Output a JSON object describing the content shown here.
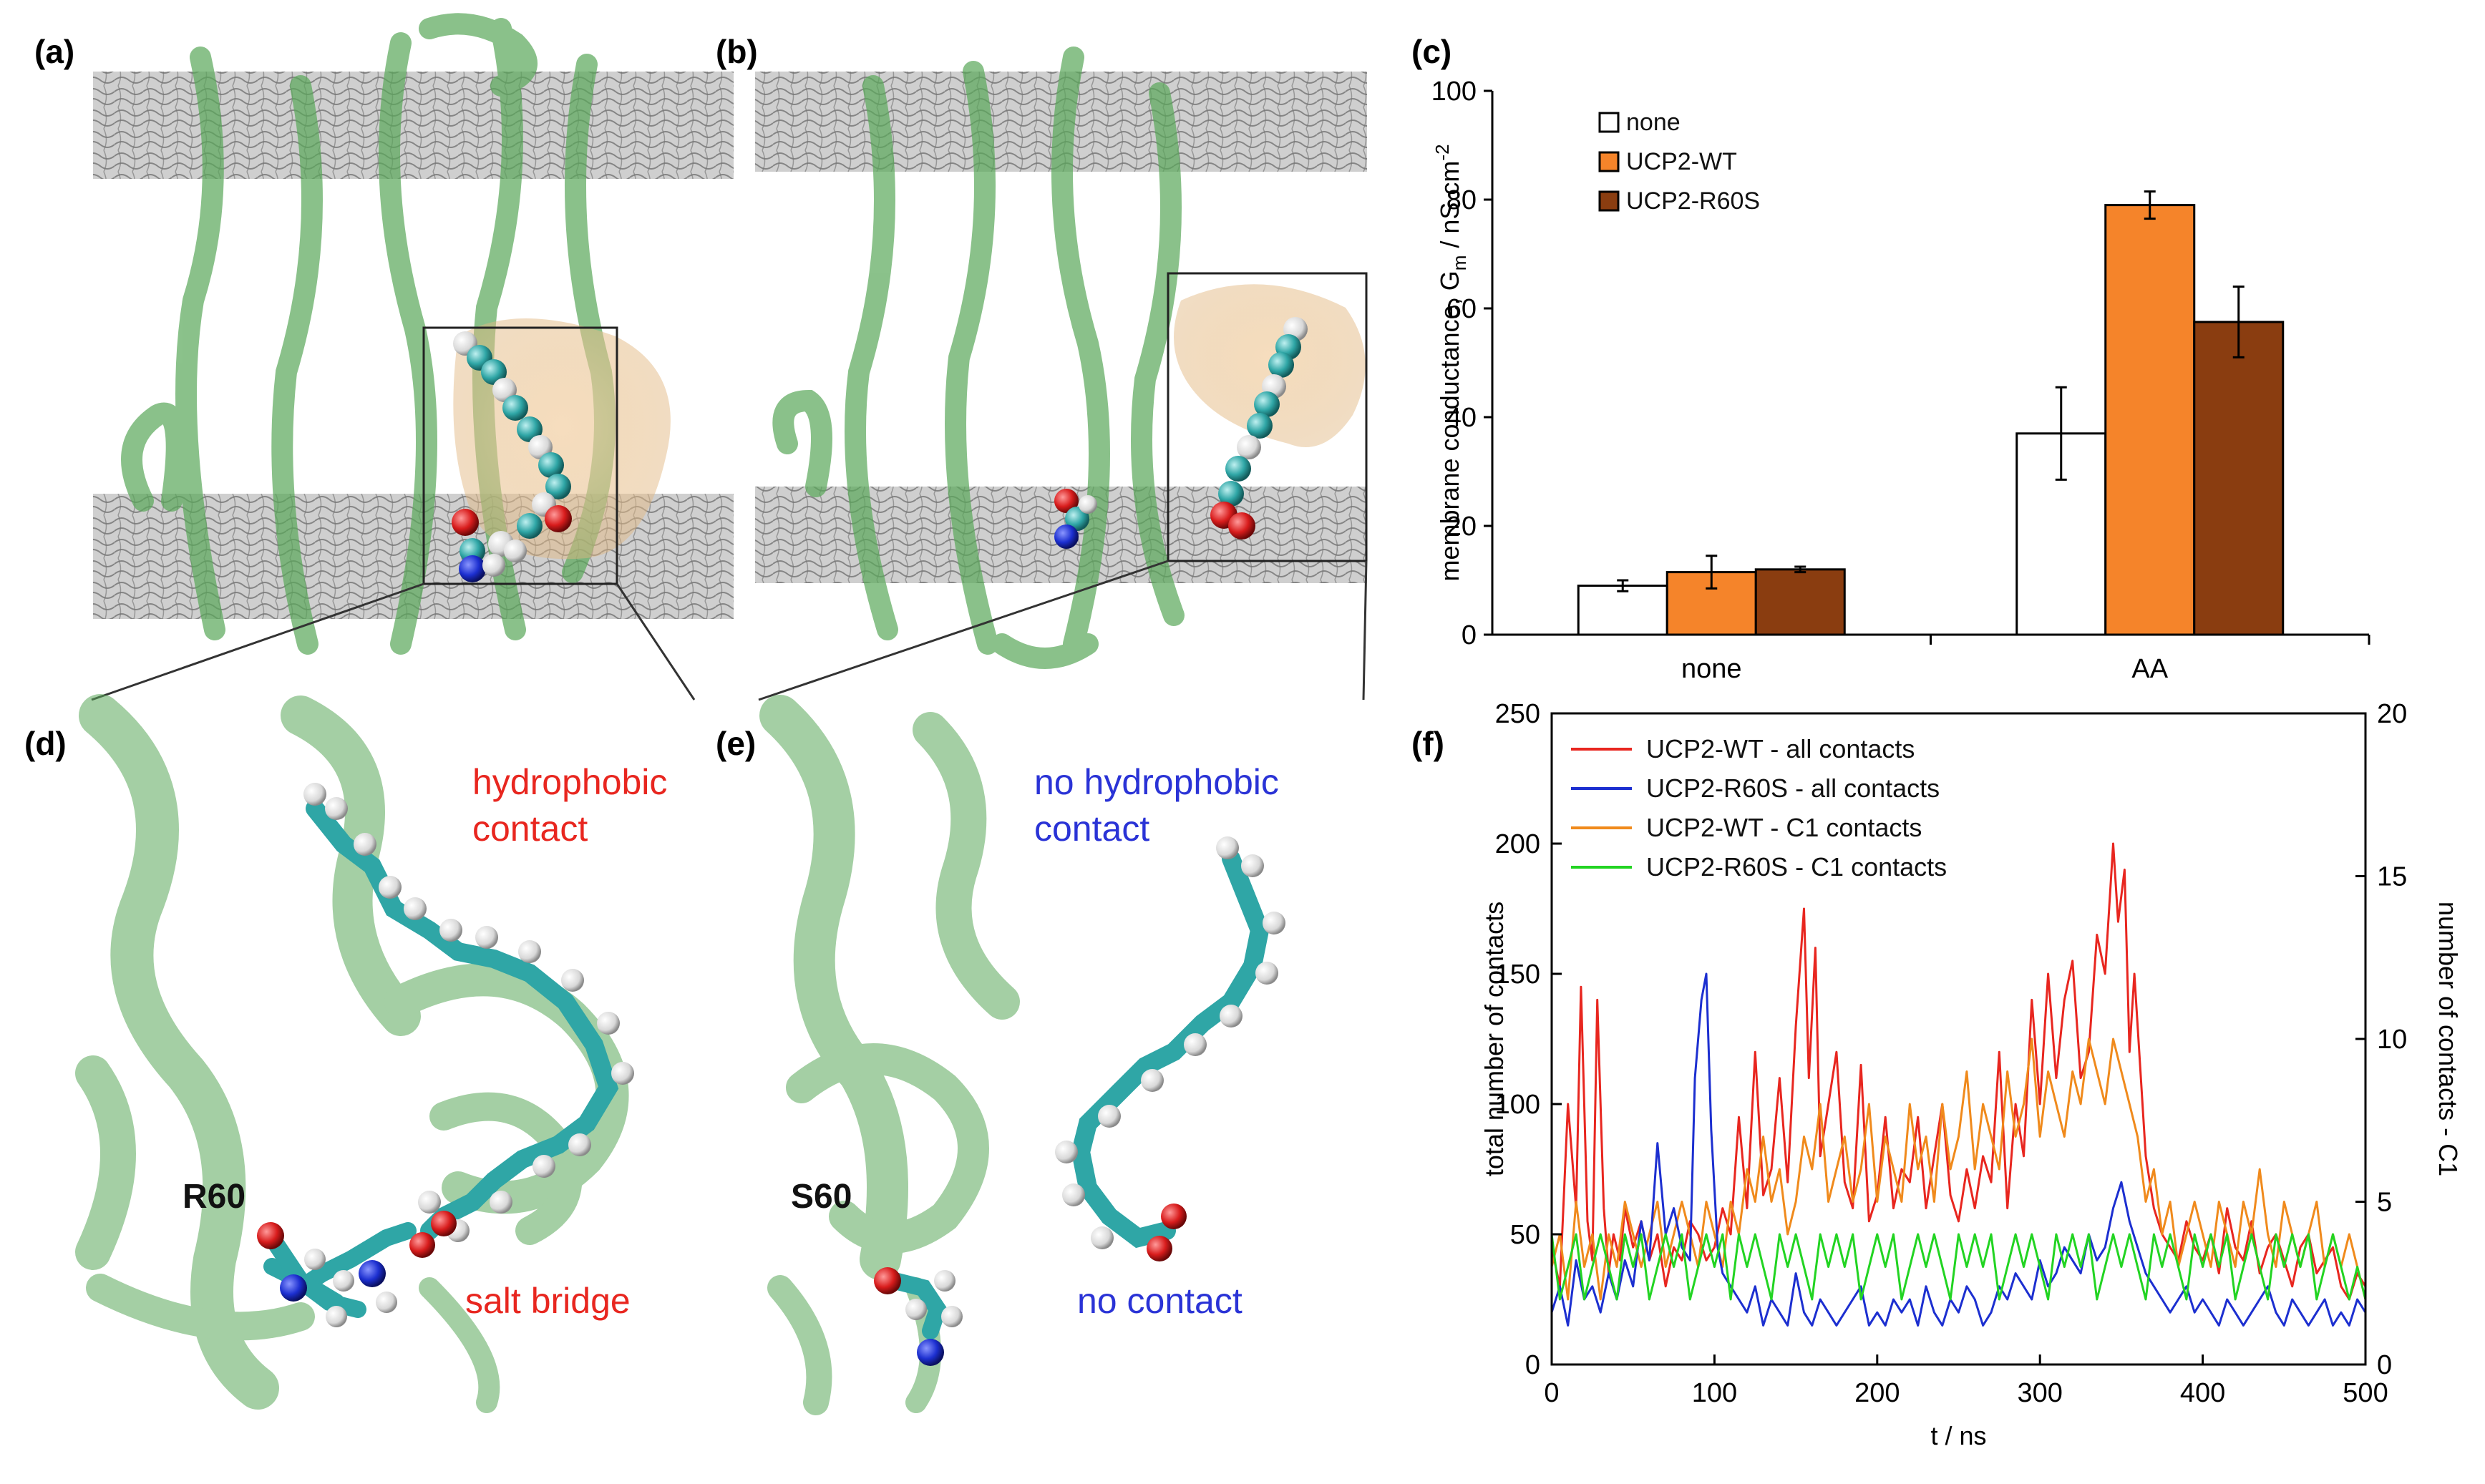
{
  "panels": {
    "a": {
      "label": "(a)"
    },
    "b": {
      "label": "(b)"
    },
    "c": {
      "label": "(c)"
    },
    "d": {
      "label": "(d)",
      "residue": "R60",
      "annotation_top": [
        "hydrophobic",
        "contact"
      ],
      "annotation_bottom": "salt bridge"
    },
    "e": {
      "label": "(e)",
      "residue": "S60",
      "annotation_top": [
        "no hydrophobic",
        "contact"
      ],
      "annotation_bottom": "no contact"
    },
    "f": {
      "label": "(f)"
    }
  },
  "colors": {
    "protein": "#5aa85a",
    "membrane": "#6e6e6e",
    "fatty_acid_carbon": "#2fa6a6",
    "oxygen": "#d81c1c",
    "nitrogen": "#1c2fd0",
    "red_text": "#e8261f",
    "blue_text": "#2a33d6",
    "bar_none": "#ffffff",
    "bar_wt": "#f5842a",
    "bar_r60s": "#8a3d10"
  },
  "chart_data": [
    {
      "type": "bar",
      "categories": [
        "none",
        "AA"
      ],
      "series": [
        {
          "name": "none",
          "values": [
            9,
            37
          ],
          "errors": [
            1,
            8.5
          ]
        },
        {
          "name": "UCP2-WT",
          "values": [
            11.5,
            79
          ],
          "errors": [
            3,
            2.5
          ]
        },
        {
          "name": "UCP2-R60S",
          "values": [
            12,
            57.5
          ],
          "errors": [
            0.5,
            6.5
          ]
        }
      ],
      "ylabel": "membrane conductance, Gₘ / nS cm⁻²",
      "ylabel_main": "membrane conductance, G",
      "ylabel_sub": "m",
      "ylabel_rest": " / nS cm",
      "ylabel_sup": "-2",
      "ylim": [
        0,
        100
      ],
      "yticks": [
        0,
        20,
        40,
        60,
        80,
        100
      ],
      "legend": "top-left"
    },
    {
      "type": "line",
      "xlabel": "t / ns",
      "ylabel": "total number of contacts",
      "y2label": "number of contacts - C1",
      "xlim": [
        0,
        500
      ],
      "ylim": [
        0,
        250
      ],
      "y2lim": [
        0,
        20
      ],
      "xticks": [
        0,
        100,
        200,
        300,
        400,
        500
      ],
      "yticks": [
        0,
        50,
        100,
        150,
        200,
        250
      ],
      "y2ticks": [
        0,
        5,
        10,
        15,
        20
      ],
      "legend": "top-left",
      "series": [
        {
          "name": "UCP2-WT - all contacts",
          "color": "#e8261f",
          "axis": "left",
          "x": [
            0,
            5,
            10,
            15,
            18,
            22,
            25,
            28,
            32,
            35,
            38,
            42,
            45,
            50,
            55,
            60,
            65,
            70,
            75,
            80,
            85,
            90,
            95,
            100,
            105,
            110,
            115,
            120,
            125,
            130,
            135,
            140,
            145,
            150,
            155,
            158,
            162,
            165,
            170,
            175,
            180,
            185,
            190,
            195,
            200,
            205,
            210,
            215,
            220,
            225,
            230,
            235,
            240,
            245,
            250,
            255,
            260,
            265,
            270,
            275,
            280,
            285,
            290,
            295,
            300,
            305,
            310,
            315,
            320,
            325,
            330,
            335,
            340,
            345,
            348,
            352,
            355,
            358,
            362,
            365,
            370,
            375,
            380,
            385,
            390,
            395,
            400,
            405,
            410,
            415,
            420,
            425,
            430,
            435,
            440,
            445,
            450,
            455,
            460,
            465,
            470,
            475,
            480,
            485,
            490,
            495,
            500
          ],
          "y": [
            45,
            30,
            100,
            60,
            145,
            55,
            40,
            140,
            60,
            35,
            50,
            40,
            60,
            45,
            55,
            40,
            50,
            30,
            45,
            40,
            55,
            50,
            40,
            45,
            60,
            50,
            95,
            60,
            120,
            65,
            75,
            110,
            70,
            130,
            175,
            110,
            160,
            80,
            100,
            120,
            70,
            60,
            115,
            55,
            65,
            95,
            60,
            75,
            70,
            95,
            60,
            80,
            100,
            65,
            55,
            75,
            60,
            80,
            70,
            120,
            60,
            100,
            80,
            140,
            100,
            150,
            110,
            140,
            155,
            110,
            120,
            165,
            150,
            200,
            170,
            190,
            120,
            150,
            110,
            80,
            60,
            50,
            45,
            40,
            55,
            45,
            40,
            50,
            35,
            60,
            45,
            40,
            55,
            35,
            45,
            50,
            40,
            30,
            45,
            50,
            35,
            40,
            45,
            30,
            25,
            35,
            30
          ]
        },
        {
          "name": "UCP2-R60S - all contacts",
          "color": "#1c2fd0",
          "axis": "left",
          "x": [
            0,
            5,
            10,
            15,
            20,
            25,
            30,
            35,
            40,
            45,
            50,
            55,
            60,
            65,
            70,
            75,
            80,
            85,
            88,
            92,
            95,
            98,
            102,
            105,
            110,
            115,
            120,
            125,
            130,
            135,
            140,
            145,
            150,
            155,
            160,
            165,
            170,
            175,
            180,
            185,
            190,
            195,
            200,
            205,
            210,
            215,
            220,
            225,
            230,
            235,
            240,
            245,
            250,
            255,
            260,
            265,
            270,
            275,
            280,
            285,
            290,
            295,
            300,
            305,
            310,
            315,
            320,
            325,
            330,
            335,
            340,
            345,
            350,
            355,
            360,
            365,
            370,
            375,
            380,
            385,
            390,
            395,
            400,
            405,
            410,
            415,
            420,
            425,
            430,
            435,
            440,
            445,
            450,
            455,
            460,
            465,
            470,
            475,
            480,
            485,
            490,
            495,
            500
          ],
          "y": [
            20,
            30,
            15,
            40,
            25,
            30,
            20,
            35,
            25,
            40,
            30,
            55,
            40,
            85,
            50,
            60,
            45,
            40,
            110,
            140,
            150,
            90,
            45,
            35,
            30,
            25,
            20,
            30,
            15,
            25,
            20,
            15,
            35,
            20,
            15,
            25,
            20,
            15,
            20,
            25,
            30,
            15,
            20,
            15,
            25,
            20,
            25,
            15,
            30,
            20,
            15,
            25,
            20,
            30,
            25,
            15,
            20,
            30,
            25,
            35,
            30,
            25,
            40,
            30,
            35,
            45,
            40,
            35,
            50,
            40,
            45,
            60,
            70,
            55,
            45,
            35,
            30,
            25,
            20,
            25,
            30,
            20,
            25,
            20,
            15,
            25,
            20,
            15,
            20,
            25,
            30,
            20,
            15,
            25,
            20,
            15,
            20,
            25,
            15,
            20,
            15,
            25,
            20
          ]
        },
        {
          "name": "UCP2-WT - C1 contacts",
          "color": "#f08a1c",
          "axis": "right",
          "x": [
            0,
            5,
            10,
            15,
            20,
            25,
            30,
            35,
            40,
            45,
            50,
            55,
            60,
            65,
            70,
            75,
            80,
            85,
            90,
            95,
            100,
            105,
            110,
            115,
            120,
            125,
            130,
            135,
            140,
            145,
            150,
            155,
            160,
            165,
            170,
            175,
            180,
            185,
            190,
            195,
            200,
            205,
            210,
            215,
            220,
            225,
            230,
            235,
            240,
            245,
            250,
            255,
            260,
            265,
            270,
            275,
            280,
            285,
            290,
            295,
            300,
            305,
            310,
            315,
            320,
            325,
            330,
            335,
            340,
            345,
            350,
            355,
            360,
            365,
            370,
            375,
            380,
            385,
            390,
            395,
            400,
            405,
            410,
            415,
            420,
            425,
            430,
            435,
            440,
            445,
            450,
            455,
            460,
            465,
            470,
            475,
            480,
            485,
            490,
            495,
            500
          ],
          "y": [
            3,
            4,
            2,
            5,
            3,
            4,
            2,
            4,
            3,
            5,
            4,
            3,
            4,
            5,
            3,
            4,
            5,
            4,
            3,
            5,
            4,
            3,
            5,
            4,
            6,
            5,
            7,
            5,
            6,
            4,
            5,
            7,
            6,
            8,
            5,
            6,
            7,
            5,
            6,
            8,
            5,
            7,
            6,
            5,
            8,
            6,
            7,
            5,
            8,
            6,
            7,
            9,
            6,
            8,
            7,
            6,
            9,
            7,
            8,
            10,
            7,
            9,
            8,
            7,
            9,
            8,
            10,
            9,
            8,
            10,
            9,
            8,
            7,
            5,
            6,
            4,
            5,
            3,
            4,
            5,
            4,
            3,
            5,
            4,
            3,
            5,
            4,
            6,
            4,
            3,
            5,
            4,
            3,
            4,
            5,
            3,
            4,
            3,
            4,
            3,
            2
          ]
        },
        {
          "name": "UCP2-R60S - C1 contacts",
          "color": "#22d422",
          "axis": "right",
          "x": [
            0,
            5,
            10,
            15,
            20,
            25,
            30,
            35,
            40,
            45,
            50,
            55,
            60,
            65,
            70,
            75,
            80,
            85,
            90,
            95,
            100,
            105,
            110,
            115,
            120,
            125,
            130,
            135,
            140,
            145,
            150,
            155,
            160,
            165,
            170,
            175,
            180,
            185,
            190,
            195,
            200,
            205,
            210,
            215,
            220,
            225,
            230,
            235,
            240,
            245,
            250,
            255,
            260,
            265,
            270,
            275,
            280,
            285,
            290,
            295,
            300,
            305,
            310,
            315,
            320,
            325,
            330,
            335,
            340,
            345,
            350,
            355,
            360,
            365,
            370,
            375,
            380,
            385,
            390,
            395,
            400,
            405,
            410,
            415,
            420,
            425,
            430,
            435,
            440,
            445,
            450,
            455,
            460,
            465,
            470,
            475,
            480,
            485,
            490,
            495,
            500
          ],
          "y": [
            4,
            2,
            3,
            4,
            2,
            3,
            4,
            3,
            2,
            4,
            3,
            4,
            2,
            3,
            4,
            3,
            4,
            2,
            3,
            4,
            3,
            4,
            2,
            4,
            3,
            4,
            3,
            2,
            4,
            3,
            4,
            3,
            2,
            4,
            3,
            4,
            3,
            4,
            2,
            3,
            4,
            3,
            4,
            2,
            3,
            4,
            3,
            4,
            3,
            2,
            4,
            3,
            4,
            3,
            4,
            2,
            3,
            4,
            3,
            4,
            3,
            2,
            4,
            3,
            4,
            3,
            4,
            2,
            3,
            4,
            3,
            4,
            3,
            2,
            4,
            3,
            4,
            3,
            2,
            4,
            3,
            4,
            3,
            4,
            2,
            3,
            4,
            3,
            2,
            4,
            3,
            4,
            3,
            4,
            2,
            3,
            4,
            3,
            2,
            3,
            2
          ]
        }
      ]
    }
  ]
}
